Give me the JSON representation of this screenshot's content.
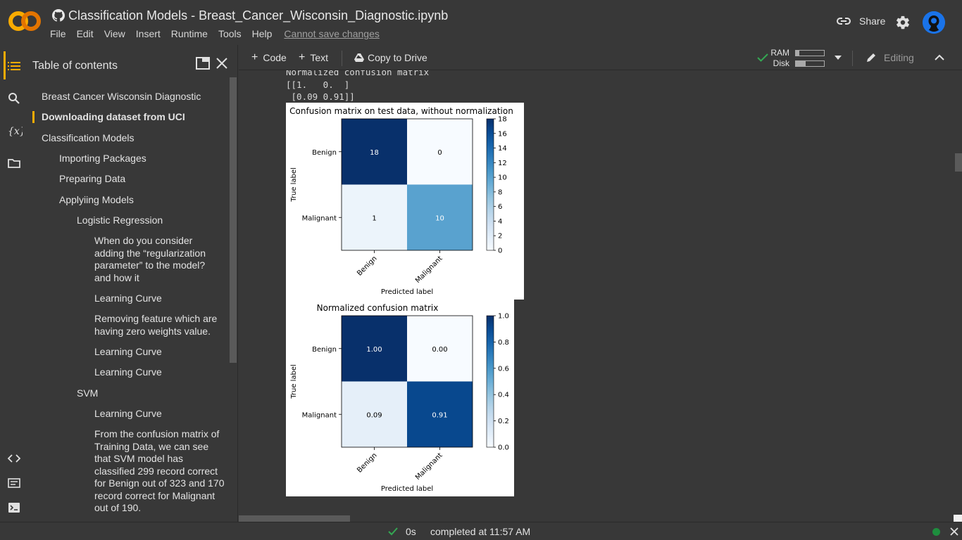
{
  "header": {
    "title": "Classification Models - Breast_Cancer_Wisconsin_Diagnostic.ipynb",
    "menu": [
      "File",
      "Edit",
      "View",
      "Insert",
      "Runtime",
      "Tools",
      "Help"
    ],
    "save_status": "Cannot save changes",
    "share_label": "Share",
    "icons": [
      "colab-logo",
      "github-icon",
      "link-icon",
      "gear-icon",
      "avatar"
    ]
  },
  "toc": {
    "title": "Table of contents",
    "items": [
      {
        "label": "Breast Cancer Wisconsin Diagnostic",
        "level": 1
      },
      {
        "label": "Downloading dataset from UCI",
        "level": 1,
        "active": true
      },
      {
        "label": "Classification Models",
        "level": 1
      },
      {
        "label": "Importing Packages",
        "level": 2
      },
      {
        "label": "Preparing Data",
        "level": 2
      },
      {
        "label": "Applyiing Models",
        "level": 2
      },
      {
        "label": "Logistic Regression",
        "level": 3
      },
      {
        "label": "When do you consider adding the “regularization parameter” to the model? and how it",
        "level": 4
      },
      {
        "label": "Learning Curve",
        "level": 4
      },
      {
        "label": "Removing feature which are having zero weights value.",
        "level": 4
      },
      {
        "label": "Learning Curve",
        "level": 4
      },
      {
        "label": "Learning Curve",
        "level": 4
      },
      {
        "label": "SVM",
        "level": 3
      },
      {
        "label": "Learning Curve",
        "level": 4
      },
      {
        "label": "From the confusion matrix of Training Data, we can see that SVM model has classified 299 record correct for Benign out of 323 and 170 record correct for Malignant out of 190.",
        "level": 4
      }
    ]
  },
  "toolbar": {
    "code_label": "Code",
    "text_label": "Text",
    "copy_label": "Copy to Drive",
    "ram_label": "RAM",
    "disk_label": "Disk",
    "ram_usage": 0.12,
    "disk_usage": 0.35,
    "editing_label": "Editing"
  },
  "output": {
    "console_lines": [
      "Normalized confusion matrix",
      "[[1.   0.  ]",
      " [0.09 0.91]]"
    ]
  },
  "chart_data": [
    {
      "type": "heatmap",
      "title": "Confusion matrix on test data, without normalization",
      "xlabel": "Predicted label",
      "ylabel": "True label",
      "x_categories": [
        "Benign",
        "Malignant"
      ],
      "y_categories": [
        "Benign",
        "Malignant"
      ],
      "values": [
        [
          18,
          0
        ],
        [
          1,
          10
        ]
      ],
      "cell_labels": [
        [
          "18",
          "0"
        ],
        [
          "1",
          "10"
        ]
      ],
      "colormap": "Blues",
      "colorbar_range": [
        0,
        18
      ],
      "colorbar_ticks": [
        0,
        2,
        4,
        6,
        8,
        10,
        12,
        14,
        16,
        18
      ],
      "colorbar_tick_labels": [
        "0",
        "2",
        "4",
        "6",
        "8",
        "10",
        "12",
        "14",
        "16",
        "18"
      ]
    },
    {
      "type": "heatmap",
      "title": "Normalized confusion matrix",
      "xlabel": "Predicted label",
      "ylabel": "True label",
      "x_categories": [
        "Benign",
        "Malignant"
      ],
      "y_categories": [
        "Benign",
        "Malignant"
      ],
      "values": [
        [
          1.0,
          0.0
        ],
        [
          0.09,
          0.91
        ]
      ],
      "cell_labels": [
        [
          "1.00",
          "0.00"
        ],
        [
          "0.09",
          "0.91"
        ]
      ],
      "colormap": "Blues",
      "colorbar_range": [
        0,
        1
      ],
      "colorbar_ticks": [
        0,
        0.2,
        0.4,
        0.6,
        0.8,
        1.0
      ],
      "colorbar_tick_labels": [
        "0.0",
        "0.2",
        "0.4",
        "0.6",
        "0.8",
        "1.0"
      ]
    }
  ],
  "status": {
    "duration": "0s",
    "message": "completed at 11:57 AM"
  }
}
